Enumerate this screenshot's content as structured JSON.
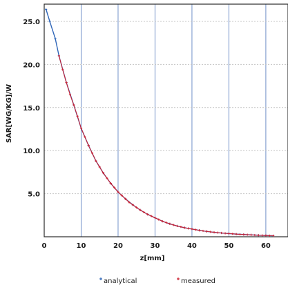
{
  "chart_data": {
    "type": "line",
    "xlabel": "z[mm]",
    "ylabel": "SAR[WG/KG]/W",
    "xlim": [
      0,
      66
    ],
    "ylim": [
      0,
      27
    ],
    "x_ticks": [
      "0",
      "10",
      "20",
      "30",
      "40",
      "50",
      "60"
    ],
    "y_ticks": [
      "5.0",
      "10.0",
      "15.0",
      "20.0",
      "25.0"
    ],
    "grid": true,
    "legend_position": "bottom",
    "series": [
      {
        "name": "analytical",
        "color": "#2f66b8",
        "marker": "plus",
        "x": [
          0.5,
          1.5,
          3,
          4,
          6,
          8,
          10,
          12,
          14,
          16,
          18,
          20,
          22,
          24,
          26,
          28,
          30,
          32,
          34,
          36,
          38,
          40,
          42,
          44,
          46,
          48,
          50,
          52,
          54,
          56,
          58,
          60,
          62
        ],
        "y": [
          26.4,
          25.0,
          23.0,
          21.0,
          17.9,
          15.3,
          12.6,
          10.6,
          8.8,
          7.4,
          6.2,
          5.2,
          4.4,
          3.7,
          3.1,
          2.6,
          2.2,
          1.8,
          1.5,
          1.25,
          1.05,
          0.9,
          0.75,
          0.62,
          0.52,
          0.44,
          0.37,
          0.31,
          0.26,
          0.22,
          0.18,
          0.15,
          0.12
        ]
      },
      {
        "name": "measured",
        "color": "#cc2233",
        "marker": "plus",
        "x": [
          4,
          5,
          6,
          7,
          8,
          9,
          10,
          11,
          12,
          13,
          14,
          15,
          16,
          17,
          18,
          19,
          20,
          21,
          22,
          23,
          24,
          25,
          26,
          27,
          28,
          29,
          30,
          31,
          32,
          33,
          34,
          35,
          36,
          37,
          38,
          39,
          40,
          41,
          42,
          43,
          44,
          45,
          46,
          47,
          48,
          49,
          50,
          51,
          52,
          53,
          54,
          55,
          56,
          57,
          58,
          59,
          60,
          61,
          62
        ],
        "y": [
          21.0,
          19.4,
          17.9,
          16.5,
          15.3,
          14.0,
          12.6,
          11.6,
          10.6,
          9.7,
          8.8,
          8.1,
          7.4,
          6.8,
          6.2,
          5.7,
          5.2,
          4.8,
          4.4,
          4.0,
          3.7,
          3.4,
          3.1,
          2.85,
          2.6,
          2.4,
          2.2,
          2.0,
          1.8,
          1.65,
          1.5,
          1.37,
          1.25,
          1.15,
          1.05,
          0.97,
          0.9,
          0.82,
          0.75,
          0.68,
          0.62,
          0.57,
          0.52,
          0.48,
          0.44,
          0.4,
          0.37,
          0.34,
          0.31,
          0.28,
          0.26,
          0.24,
          0.22,
          0.2,
          0.18,
          0.16,
          0.15,
          0.13,
          0.12
        ]
      }
    ]
  }
}
